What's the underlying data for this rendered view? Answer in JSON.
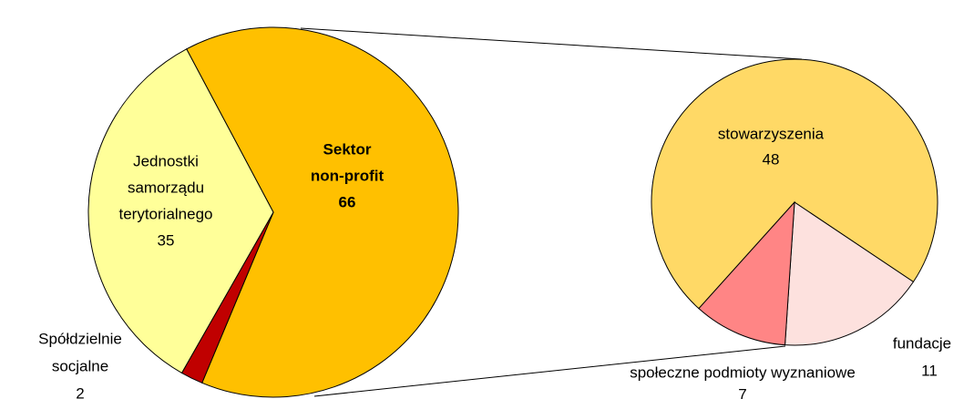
{
  "chart_data": {
    "type": "pie-of-pie",
    "pies": [
      {
        "slices": [
          {
            "label": [
              "Sektor",
              "non-profit"
            ],
            "value": 66,
            "color": "#FFC000"
          },
          {
            "label": [
              "Spółdzielnie",
              "socjalne"
            ],
            "value": 2,
            "color": "#C00000"
          },
          {
            "label": [
              "Jednostki",
              "samorządu",
              "terytorialnego"
            ],
            "value": 35,
            "color": "#FFFF99"
          }
        ]
      },
      {
        "slices": [
          {
            "label": [
              "stowarzyszenia"
            ],
            "value": 48,
            "color": "#FFD966"
          },
          {
            "label": [
              "fundacje"
            ],
            "value": 11,
            "color": "#FDE1DE"
          },
          {
            "label": [
              "społeczne podmioty wyznaniowe"
            ],
            "value": 7,
            "color": "#FF8585"
          }
        ]
      }
    ]
  }
}
